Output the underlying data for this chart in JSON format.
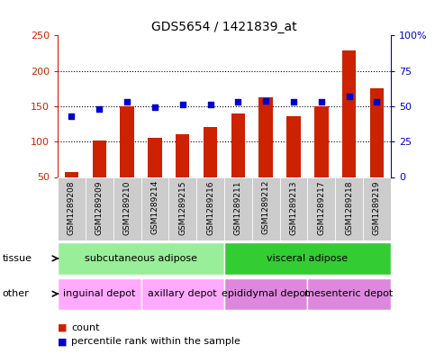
{
  "title": "GDS5654 / 1421839_at",
  "samples": [
    "GSM1289208",
    "GSM1289209",
    "GSM1289210",
    "GSM1289214",
    "GSM1289215",
    "GSM1289216",
    "GSM1289211",
    "GSM1289212",
    "GSM1289213",
    "GSM1289217",
    "GSM1289218",
    "GSM1289219"
  ],
  "counts": [
    57,
    102,
    150,
    105,
    111,
    120,
    140,
    163,
    136,
    150,
    229,
    175
  ],
  "percentiles": [
    43,
    48,
    53,
    49,
    51,
    51,
    53,
    54,
    53,
    53,
    57,
    53
  ],
  "ylim_left": [
    50,
    250
  ],
  "ylim_right": [
    0,
    100
  ],
  "yticks_left": [
    50,
    100,
    150,
    200,
    250
  ],
  "yticks_right": [
    0,
    25,
    50,
    75,
    100
  ],
  "bar_color": "#cc2200",
  "dot_color": "#0000cc",
  "grid_color": "#000000",
  "tissue_groups": [
    {
      "label": "subcutaneous adipose",
      "start": 0,
      "end": 6,
      "color": "#99ee99"
    },
    {
      "label": "visceral adipose",
      "start": 6,
      "end": 12,
      "color": "#33cc33"
    }
  ],
  "other_groups": [
    {
      "label": "inguinal depot",
      "start": 0,
      "end": 3,
      "color": "#ffaaff"
    },
    {
      "label": "axillary depot",
      "start": 3,
      "end": 6,
      "color": "#ffaaff"
    },
    {
      "label": "epididymal depot",
      "start": 6,
      "end": 9,
      "color": "#dd88dd"
    },
    {
      "label": "mesenteric depot",
      "start": 9,
      "end": 12,
      "color": "#dd88dd"
    }
  ],
  "legend_items": [
    {
      "label": "count",
      "color": "#cc2200"
    },
    {
      "label": "percentile rank within the sample",
      "color": "#0000cc"
    }
  ],
  "tissue_label": "tissue",
  "other_label": "other",
  "background_color": "#ffffff",
  "xticklabel_bg": "#cccccc",
  "fig_width": 4.93,
  "fig_height": 3.93,
  "dpi": 100
}
